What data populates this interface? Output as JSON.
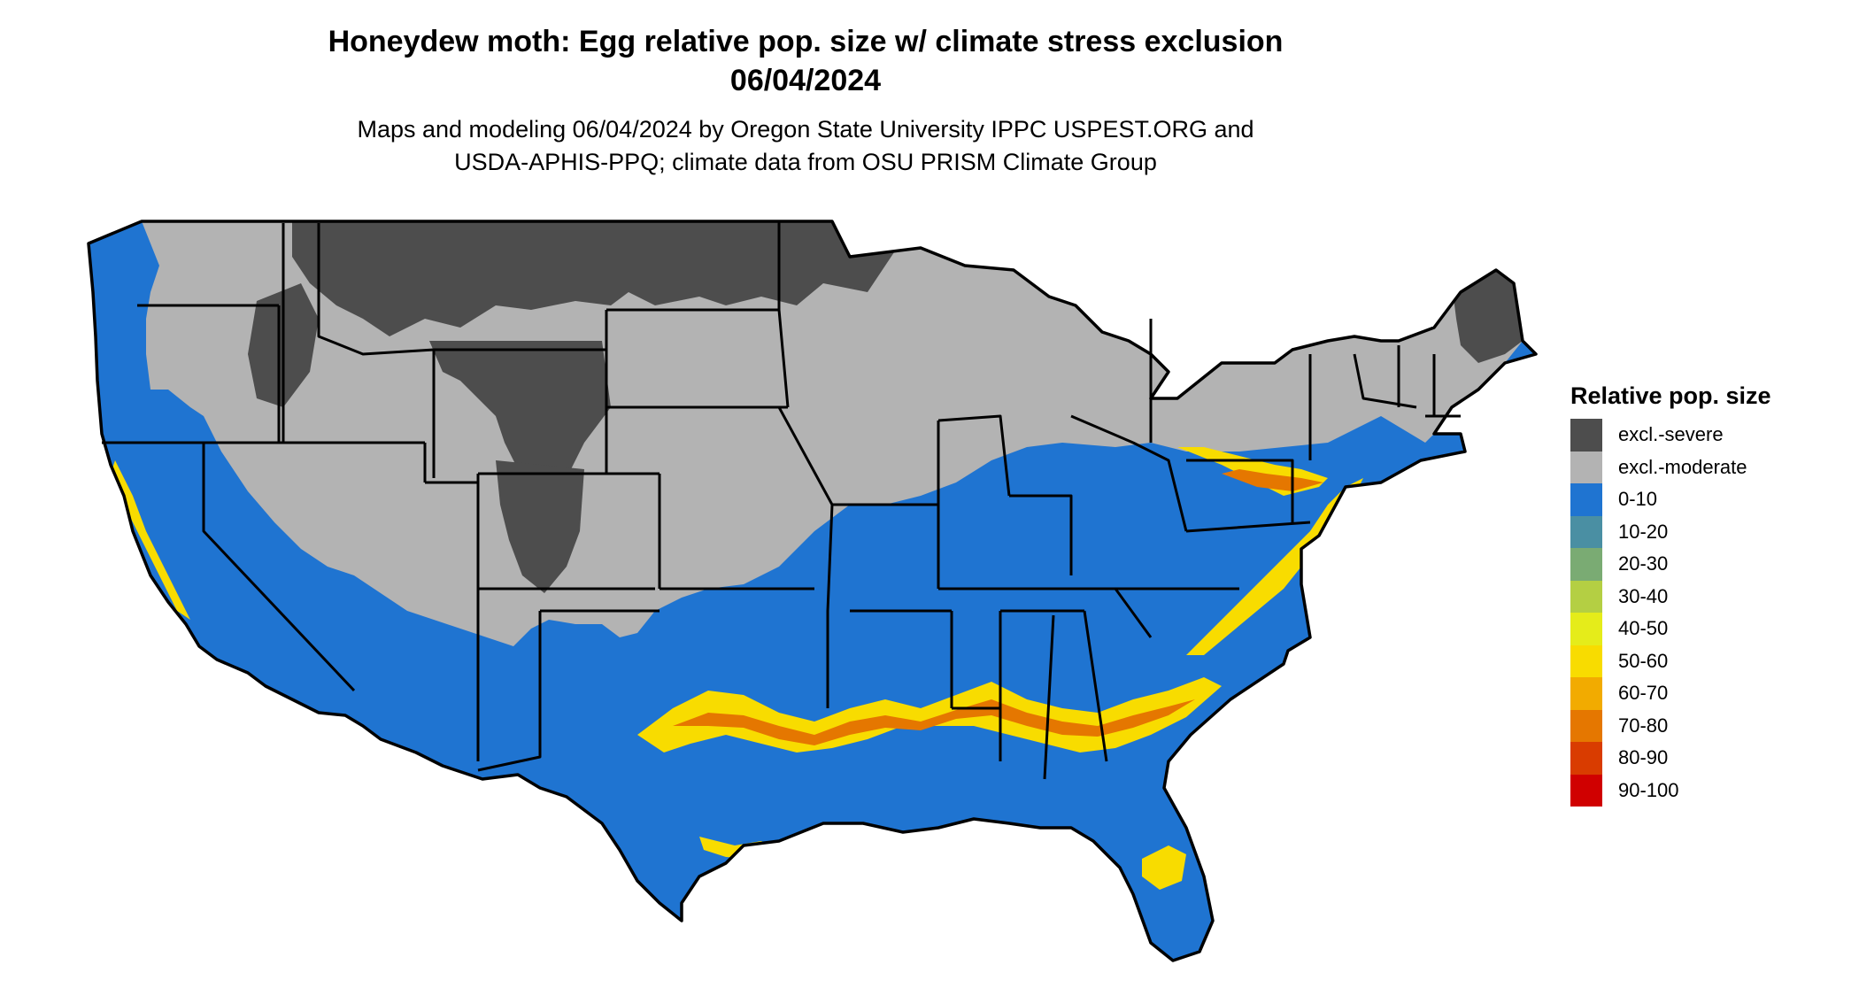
{
  "title": {
    "line1": "Honeydew moth: Egg relative pop. size w/ climate stress exclusion",
    "line2": "06/04/2024"
  },
  "subtitle": {
    "line1": "Maps and modeling 06/04/2024 by Oregon State University IPPC USPEST.ORG and",
    "line2": "USDA-APHIS-PPQ; climate data from OSU PRISM Climate Group"
  },
  "legend": {
    "title": "Relative pop. size",
    "items": [
      {
        "label": "excl.-severe",
        "color": "#4d4d4d"
      },
      {
        "label": "excl.-moderate",
        "color": "#b3b3b3"
      },
      {
        "label": "0-10",
        "color": "#1f74d1"
      },
      {
        "label": "10-20",
        "color": "#4a8fa3"
      },
      {
        "label": "20-30",
        "color": "#7aab73"
      },
      {
        "label": "30-40",
        "color": "#b4cf43"
      },
      {
        "label": "40-50",
        "color": "#e5ec1a"
      },
      {
        "label": "50-60",
        "color": "#f8dc00"
      },
      {
        "label": "60-70",
        "color": "#f2ab00"
      },
      {
        "label": "70-80",
        "color": "#e57700"
      },
      {
        "label": "80-90",
        "color": "#d93c00"
      },
      {
        "label": "90-100",
        "color": "#d00000"
      }
    ]
  },
  "map": {
    "region": "Contiguous United States",
    "colors": {
      "excl_severe": "#4d4d4d",
      "excl_moderate": "#b3b3b3",
      "low": "#1f74d1",
      "mid": "#f8dc00",
      "high": "#e57700",
      "border": "#000000"
    }
  }
}
